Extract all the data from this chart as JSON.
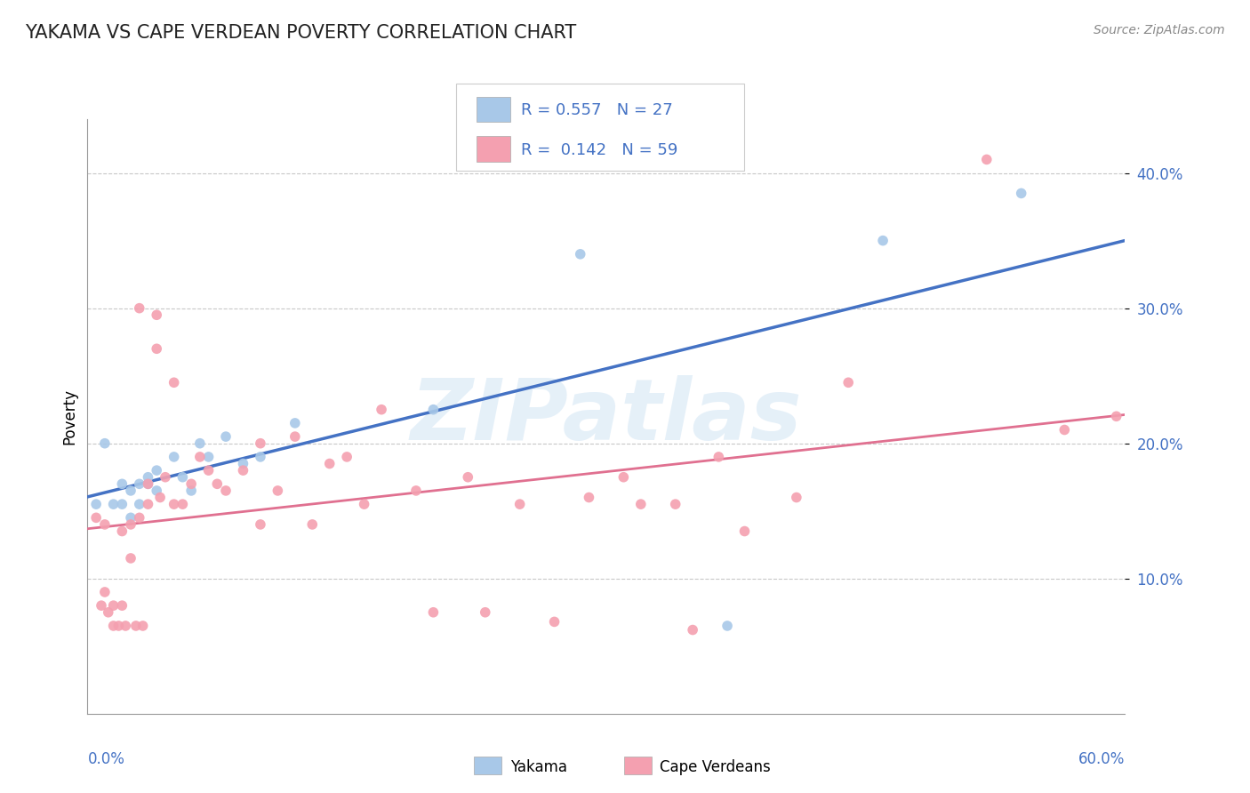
{
  "title": "YAKAMA VS CAPE VERDEAN POVERTY CORRELATION CHART",
  "source": "Source: ZipAtlas.com",
  "ylabel": "Poverty",
  "xlim": [
    0.0,
    0.6
  ],
  "ylim": [
    0.0,
    0.44
  ],
  "yticks": [
    0.1,
    0.2,
    0.3,
    0.4
  ],
  "ytick_labels": [
    "10.0%",
    "20.0%",
    "30.0%",
    "40.0%"
  ],
  "blue_color": "#a8c8e8",
  "pink_color": "#f4a0b0",
  "trend_blue": "#4472c4",
  "trend_pink": "#e07090",
  "legend_text_color": "#4472c4",
  "grid_color": "#c8c8c8",
  "watermark": "ZIPatlas",
  "yakama_x": [
    0.005,
    0.01,
    0.015,
    0.02,
    0.02,
    0.025,
    0.025,
    0.03,
    0.03,
    0.035,
    0.035,
    0.04,
    0.04,
    0.05,
    0.055,
    0.06,
    0.065,
    0.07,
    0.08,
    0.09,
    0.1,
    0.12,
    0.2,
    0.37,
    0.46,
    0.54,
    0.285
  ],
  "yakama_y": [
    0.155,
    0.2,
    0.155,
    0.17,
    0.155,
    0.165,
    0.145,
    0.17,
    0.155,
    0.175,
    0.17,
    0.165,
    0.18,
    0.19,
    0.175,
    0.165,
    0.2,
    0.19,
    0.205,
    0.185,
    0.19,
    0.215,
    0.225,
    0.065,
    0.35,
    0.385,
    0.34
  ],
  "capeverdean_x": [
    0.005,
    0.008,
    0.01,
    0.01,
    0.012,
    0.015,
    0.015,
    0.018,
    0.02,
    0.02,
    0.022,
    0.025,
    0.025,
    0.028,
    0.03,
    0.03,
    0.032,
    0.035,
    0.035,
    0.04,
    0.04,
    0.042,
    0.045,
    0.05,
    0.05,
    0.055,
    0.06,
    0.065,
    0.07,
    0.075,
    0.08,
    0.09,
    0.1,
    0.1,
    0.11,
    0.12,
    0.13,
    0.14,
    0.15,
    0.16,
    0.17,
    0.19,
    0.2,
    0.22,
    0.23,
    0.25,
    0.27,
    0.29,
    0.31,
    0.32,
    0.34,
    0.35,
    0.365,
    0.38,
    0.41,
    0.44,
    0.52,
    0.565,
    0.595
  ],
  "capeverdean_y": [
    0.145,
    0.08,
    0.14,
    0.09,
    0.075,
    0.08,
    0.065,
    0.065,
    0.135,
    0.08,
    0.065,
    0.14,
    0.115,
    0.065,
    0.145,
    0.3,
    0.065,
    0.155,
    0.17,
    0.295,
    0.27,
    0.16,
    0.175,
    0.155,
    0.245,
    0.155,
    0.17,
    0.19,
    0.18,
    0.17,
    0.165,
    0.18,
    0.2,
    0.14,
    0.165,
    0.205,
    0.14,
    0.185,
    0.19,
    0.155,
    0.225,
    0.165,
    0.075,
    0.175,
    0.075,
    0.155,
    0.068,
    0.16,
    0.175,
    0.155,
    0.155,
    0.062,
    0.19,
    0.135,
    0.16,
    0.245,
    0.41,
    0.21,
    0.22
  ]
}
